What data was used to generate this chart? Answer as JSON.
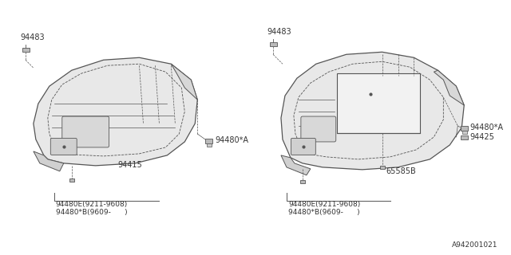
{
  "bg_color": "#ffffff",
  "line_color": "#555555",
  "text_color": "#333333",
  "part_fill": "#e8e8e8",
  "footnote": "A942001021",
  "left": {
    "label_94483": "94483",
    "label_94415": "94415",
    "label_94480A": "94480*A",
    "label_bottom1": "94480E(9211-9608)",
    "label_bottom2": "94480*B(9609-      )"
  },
  "right": {
    "label_94483": "94483",
    "label_94480A": "94480*A",
    "label_94425": "94425",
    "label_65585B": "65585B",
    "label_bottom1": "94480E(9211-9608)",
    "label_bottom2": "94480*B(9609-      )"
  }
}
